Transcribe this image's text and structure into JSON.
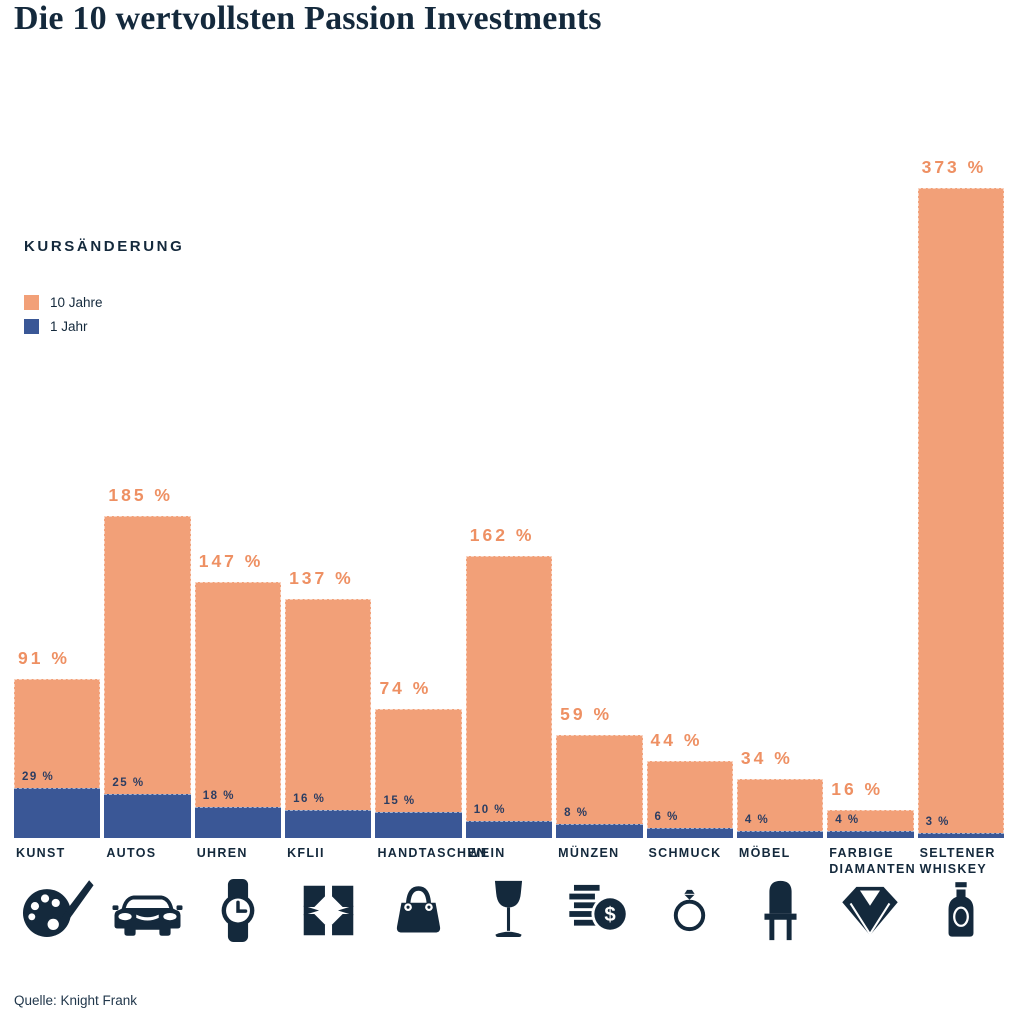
{
  "title": "Die 10 wertvollsten Passion Investments",
  "legend": {
    "heading": "KURSÄNDERUNG",
    "items": [
      {
        "label": "10 Jahre",
        "color": "#F2A078"
      },
      {
        "label": "1 Jahr",
        "color": "#3A5796"
      }
    ]
  },
  "source": "Quelle: Knight Frank",
  "colors": {
    "background": "#FFFFFF",
    "navy": "#14293C",
    "orange_bar": "#F2A078",
    "orange_label": "#EE9063",
    "blue_bar": "#3A5796",
    "blue_label": "#2B3D62"
  },
  "chart_data": {
    "type": "bar",
    "subtype": "overlaid-columns-from-common-baseline",
    "title": "Die 10 wertvollsten Passion Investments",
    "unit": "%",
    "ylim": [
      0,
      373
    ],
    "grid": false,
    "legend_position": "upper-left",
    "value_label_format": "{value} %",
    "categories": [
      "KUNST",
      "AUTOS",
      "UHREN",
      "KFLII",
      "HANDTASCHEN",
      "WEIN",
      "MÜNZEN",
      "SCHMUCK",
      "MÖBEL",
      "FARBIGE DIAMANTEN",
      "SELTENER WHISKEY"
    ],
    "icons": [
      "palette-brush",
      "car",
      "wristwatch",
      "kf-checkered-logo",
      "handbag",
      "wine-glass",
      "coins-dollar",
      "ring",
      "chair",
      "diamond",
      "whiskey-bottle"
    ],
    "series": [
      {
        "name": "10 Jahre",
        "color": "#F2A078",
        "label_color": "#EE9063",
        "values": [
          91,
          185,
          147,
          137,
          74,
          162,
          59,
          44,
          34,
          16,
          373
        ]
      },
      {
        "name": "1 Jahr",
        "color": "#3A5796",
        "label_color": "#2B3D62",
        "values": [
          29,
          25,
          18,
          16,
          15,
          10,
          8,
          6,
          4,
          4,
          3
        ]
      }
    ]
  }
}
